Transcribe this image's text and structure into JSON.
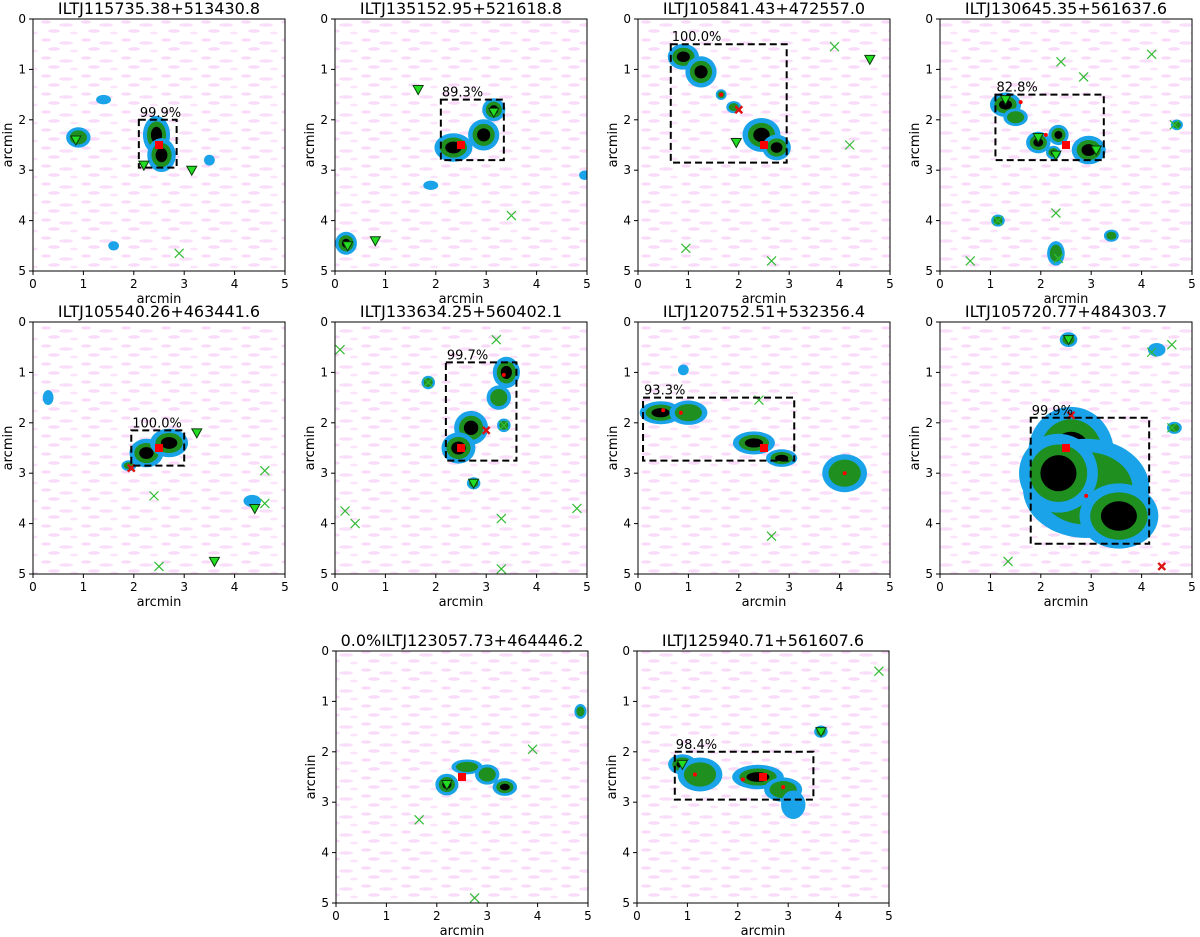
{
  "figure": {
    "layout": "grid",
    "rows": [
      4,
      4,
      2
    ],
    "colors": {
      "background_noise": "#f4b8f4",
      "low_emission": "#1aa3e8",
      "mid_emission": "#1f8f1f",
      "high_emission": "#000000",
      "core_marker": "#ff0000",
      "optical_match": "#22dd22",
      "unmatched_optical": "#33bb33",
      "bounding_box": "#000000"
    }
  },
  "chart_data": [
    {
      "type": "heatmap",
      "title": "ILTJ115735.38+513430.8",
      "xlabel": "arcmin",
      "ylabel": "arcmin",
      "xlim": [
        0,
        5
      ],
      "ylim": [
        5,
        0
      ],
      "xticks": [
        "0",
        "1",
        "2",
        "3",
        "4",
        "5"
      ],
      "yticks": [
        "0",
        "1",
        "2",
        "3",
        "4",
        "5"
      ],
      "box": {
        "x0": 2.1,
        "x1": 2.85,
        "y0": 2.0,
        "y1": 2.95,
        "label": "99.9%"
      },
      "center": [
        2.5,
        2.5
      ],
      "sources": [
        {
          "x": 2.45,
          "y": 2.3,
          "rx": 0.17,
          "ry": 0.25,
          "level": 3
        },
        {
          "x": 2.55,
          "y": 2.7,
          "rx": 0.18,
          "ry": 0.22,
          "level": 3
        },
        {
          "x": 0.9,
          "y": 2.35,
          "rx": 0.15,
          "ry": 0.12,
          "level": 2
        },
        {
          "x": 3.5,
          "y": 2.8,
          "rx": 0.05,
          "ry": 0.05,
          "level": 1
        },
        {
          "x": 1.6,
          "y": 4.5,
          "rx": 0.05,
          "ry": 0.04,
          "level": 1
        },
        {
          "x": 1.4,
          "y": 1.6,
          "rx": 0.08,
          "ry": 0.04,
          "level": 1
        }
      ],
      "triangles": [
        [
          0.85,
          2.4
        ],
        [
          2.2,
          2.9
        ],
        [
          3.15,
          3.0
        ]
      ],
      "crosses": [
        [
          2.9,
          4.65
        ]
      ],
      "red_x": [],
      "red_dots": []
    },
    {
      "type": "heatmap",
      "title": "ILTJ135152.95+521618.8",
      "xlabel": "arcmin",
      "ylabel": "arcmin",
      "xlim": [
        0,
        5
      ],
      "ylim": [
        5,
        0
      ],
      "xticks": [
        "0",
        "1",
        "2",
        "3",
        "4",
        "5"
      ],
      "yticks": [
        "0",
        "1",
        "2",
        "3",
        "4",
        "5"
      ],
      "box": {
        "x0": 2.1,
        "x1": 3.35,
        "y0": 1.6,
        "y1": 2.8,
        "label": "89.3%"
      },
      "center": [
        2.5,
        2.5
      ],
      "sources": [
        {
          "x": 2.35,
          "y": 2.55,
          "rx": 0.25,
          "ry": 0.18,
          "level": 3
        },
        {
          "x": 2.95,
          "y": 2.3,
          "rx": 0.2,
          "ry": 0.2,
          "level": 3
        },
        {
          "x": 3.15,
          "y": 1.8,
          "rx": 0.14,
          "ry": 0.14,
          "level": 3
        },
        {
          "x": 0.22,
          "y": 4.45,
          "rx": 0.13,
          "ry": 0.14,
          "level": 3
        },
        {
          "x": 4.95,
          "y": 3.1,
          "rx": 0.05,
          "ry": 0.04,
          "level": 1
        },
        {
          "x": 1.9,
          "y": 3.3,
          "rx": 0.08,
          "ry": 0.04,
          "level": 1
        }
      ],
      "triangles": [
        [
          1.65,
          1.4
        ],
        [
          3.15,
          1.85
        ],
        [
          0.25,
          4.5
        ],
        [
          0.8,
          4.4
        ]
      ],
      "crosses": [
        [
          3.5,
          3.9
        ]
      ],
      "red_x": [],
      "red_dots": []
    },
    {
      "type": "heatmap",
      "title": "ILTJ105841.43+472557.0",
      "xlabel": "arcmin",
      "ylabel": "arcmin",
      "xlim": [
        0,
        5
      ],
      "ylim": [
        5,
        0
      ],
      "xticks": [
        "0",
        "1",
        "2",
        "3",
        "4",
        "5"
      ],
      "yticks": [
        "0",
        "1",
        "2",
        "3",
        "4",
        "5"
      ],
      "box": {
        "x0": 0.65,
        "x1": 2.95,
        "y0": 0.5,
        "y1": 2.85,
        "label": "100.0%"
      },
      "center": [
        2.5,
        2.5
      ],
      "sources": [
        {
          "x": 0.9,
          "y": 0.75,
          "rx": 0.2,
          "ry": 0.16,
          "level": 3
        },
        {
          "x": 1.25,
          "y": 1.05,
          "rx": 0.2,
          "ry": 0.2,
          "level": 3
        },
        {
          "x": 1.65,
          "y": 1.5,
          "rx": 0.05,
          "ry": 0.05,
          "level": 2
        },
        {
          "x": 1.9,
          "y": 1.75,
          "rx": 0.08,
          "ry": 0.06,
          "level": 2
        },
        {
          "x": 2.45,
          "y": 2.3,
          "rx": 0.25,
          "ry": 0.22,
          "level": 3
        },
        {
          "x": 2.75,
          "y": 2.55,
          "rx": 0.18,
          "ry": 0.16,
          "level": 3
        }
      ],
      "triangles": [
        [
          1.95,
          2.45
        ],
        [
          4.6,
          0.8
        ]
      ],
      "crosses": [
        [
          3.9,
          0.55
        ],
        [
          4.2,
          2.5
        ],
        [
          0.95,
          4.55
        ],
        [
          2.65,
          4.8
        ]
      ],
      "red_x": [
        [
          2.0,
          1.8
        ]
      ],
      "red_dots": [
        [
          1.65,
          1.5
        ]
      ]
    },
    {
      "type": "heatmap",
      "title": "ILTJ130645.35+561637.6",
      "xlabel": "arcmin",
      "ylabel": "arcmin",
      "xlim": [
        0,
        5
      ],
      "ylim": [
        5,
        0
      ],
      "xticks": [
        "0",
        "1",
        "2",
        "3",
        "4",
        "5"
      ],
      "yticks": [
        "0",
        "1",
        "2",
        "3",
        "4",
        "5"
      ],
      "box": {
        "x0": 1.1,
        "x1": 3.25,
        "y0": 1.5,
        "y1": 2.8,
        "label": "82.8%"
      },
      "center": [
        2.5,
        2.5
      ],
      "sources": [
        {
          "x": 1.3,
          "y": 1.7,
          "rx": 0.2,
          "ry": 0.15,
          "level": 3
        },
        {
          "x": 1.5,
          "y": 1.95,
          "rx": 0.15,
          "ry": 0.1,
          "level": 2
        },
        {
          "x": 1.95,
          "y": 2.45,
          "rx": 0.15,
          "ry": 0.13,
          "level": 3
        },
        {
          "x": 2.35,
          "y": 2.3,
          "rx": 0.12,
          "ry": 0.12,
          "level": 3
        },
        {
          "x": 2.25,
          "y": 2.65,
          "rx": 0.08,
          "ry": 0.07,
          "level": 3
        },
        {
          "x": 2.95,
          "y": 2.6,
          "rx": 0.22,
          "ry": 0.18,
          "level": 3
        },
        {
          "x": 1.15,
          "y": 4.0,
          "rx": 0.07,
          "ry": 0.06,
          "level": 2
        },
        {
          "x": 2.3,
          "y": 4.65,
          "rx": 0.1,
          "ry": 0.15,
          "level": 2
        },
        {
          "x": 3.4,
          "y": 4.3,
          "rx": 0.08,
          "ry": 0.06,
          "level": 2
        },
        {
          "x": 4.7,
          "y": 2.1,
          "rx": 0.06,
          "ry": 0.05,
          "level": 2
        }
      ],
      "triangles": [
        [
          1.3,
          1.6
        ],
        [
          1.95,
          2.35
        ],
        [
          2.3,
          2.7
        ],
        [
          3.1,
          2.6
        ]
      ],
      "crosses": [
        [
          2.4,
          0.85
        ],
        [
          2.85,
          1.15
        ],
        [
          4.2,
          0.7
        ],
        [
          4.65,
          2.1
        ],
        [
          1.15,
          4.0
        ],
        [
          2.3,
          3.85
        ],
        [
          2.35,
          4.75
        ],
        [
          0.6,
          4.8
        ]
      ],
      "red_x": [],
      "red_dots": [
        [
          1.6,
          1.65
        ],
        [
          2.1,
          2.3
        ]
      ]
    },
    {
      "type": "heatmap",
      "title": "ILTJ105540.26+463441.6",
      "xlabel": "arcmin",
      "ylabel": "arcmin",
      "xlim": [
        0,
        5
      ],
      "ylim": [
        5,
        0
      ],
      "xticks": [
        "0",
        "1",
        "2",
        "3",
        "4",
        "5"
      ],
      "yticks": [
        "0",
        "1",
        "2",
        "3",
        "4",
        "5"
      ],
      "box": {
        "x0": 1.95,
        "x1": 3.0,
        "y0": 2.15,
        "y1": 2.85,
        "label": "100.0%"
      },
      "center": [
        2.5,
        2.5
      ],
      "sources": [
        {
          "x": 2.25,
          "y": 2.6,
          "rx": 0.22,
          "ry": 0.18,
          "level": 3
        },
        {
          "x": 2.7,
          "y": 2.4,
          "rx": 0.25,
          "ry": 0.18,
          "level": 3
        },
        {
          "x": 1.9,
          "y": 2.85,
          "rx": 0.08,
          "ry": 0.05,
          "level": 2
        },
        {
          "x": 0.3,
          "y": 1.5,
          "rx": 0.05,
          "ry": 0.08,
          "level": 1
        },
        {
          "x": 4.35,
          "y": 3.55,
          "rx": 0.1,
          "ry": 0.06,
          "level": 1
        }
      ],
      "triangles": [
        [
          3.25,
          2.2
        ],
        [
          4.4,
          3.7
        ],
        [
          3.6,
          4.75
        ]
      ],
      "crosses": [
        [
          2.4,
          3.45
        ],
        [
          4.6,
          2.95
        ],
        [
          4.6,
          3.6
        ],
        [
          2.5,
          4.85
        ]
      ],
      "red_x": [
        [
          1.95,
          2.9
        ]
      ],
      "red_dots": []
    },
    {
      "type": "heatmap",
      "title": "ILTJ133634.25+560402.1",
      "xlabel": "arcmin",
      "ylabel": "arcmin",
      "xlim": [
        0,
        5
      ],
      "ylim": [
        5,
        0
      ],
      "xticks": [
        "0",
        "1",
        "2",
        "3",
        "4",
        "5"
      ],
      "yticks": [
        "0",
        "1",
        "2",
        "3",
        "4",
        "5"
      ],
      "box": {
        "x0": 2.2,
        "x1": 3.6,
        "y0": 0.8,
        "y1": 2.75,
        "label": "99.7%"
      },
      "center": [
        2.5,
        2.5
      ],
      "sources": [
        {
          "x": 3.4,
          "y": 1.0,
          "rx": 0.17,
          "ry": 0.2,
          "level": 3
        },
        {
          "x": 3.25,
          "y": 1.5,
          "rx": 0.15,
          "ry": 0.15,
          "level": 2
        },
        {
          "x": 2.7,
          "y": 2.1,
          "rx": 0.22,
          "ry": 0.22,
          "level": 3
        },
        {
          "x": 2.45,
          "y": 2.5,
          "rx": 0.22,
          "ry": 0.2,
          "level": 3
        },
        {
          "x": 1.85,
          "y": 1.2,
          "rx": 0.07,
          "ry": 0.07,
          "level": 2
        },
        {
          "x": 2.75,
          "y": 3.2,
          "rx": 0.07,
          "ry": 0.06,
          "level": 2
        },
        {
          "x": 3.35,
          "y": 2.05,
          "rx": 0.07,
          "ry": 0.07,
          "level": 2
        }
      ],
      "triangles": [
        [
          2.75,
          3.2
        ]
      ],
      "crosses": [
        [
          0.1,
          0.55
        ],
        [
          3.2,
          0.35
        ],
        [
          1.85,
          1.2
        ],
        [
          3.35,
          2.05
        ],
        [
          0.2,
          3.75
        ],
        [
          0.4,
          4.0
        ],
        [
          3.3,
          3.9
        ],
        [
          4.8,
          3.7
        ],
        [
          3.3,
          4.9
        ]
      ],
      "red_x": [
        [
          3.0,
          2.15
        ]
      ],
      "red_dots": [
        [
          3.35,
          1.05
        ]
      ]
    },
    {
      "type": "heatmap",
      "title": "ILTJ120752.51+532356.4",
      "xlabel": "arcmin",
      "ylabel": "arcmin",
      "xlim": [
        0,
        5
      ],
      "ylim": [
        5,
        0
      ],
      "xticks": [
        "0",
        "1",
        "2",
        "3",
        "4",
        "5"
      ],
      "yticks": [
        "0",
        "1",
        "2",
        "3",
        "4",
        "5"
      ],
      "box": {
        "x0": 0.1,
        "x1": 3.1,
        "y0": 1.5,
        "y1": 2.75,
        "label": "93.3%"
      },
      "center": [
        2.5,
        2.5
      ],
      "sources": [
        {
          "x": 0.45,
          "y": 1.8,
          "rx": 0.28,
          "ry": 0.14,
          "level": 3
        },
        {
          "x": 1.0,
          "y": 1.8,
          "rx": 0.25,
          "ry": 0.15,
          "level": 2
        },
        {
          "x": 2.3,
          "y": 2.4,
          "rx": 0.28,
          "ry": 0.14,
          "level": 3
        },
        {
          "x": 2.85,
          "y": 2.7,
          "rx": 0.2,
          "ry": 0.1,
          "level": 3
        },
        {
          "x": 4.1,
          "y": 3.0,
          "rx": 0.3,
          "ry": 0.25,
          "level": 2
        },
        {
          "x": 0.9,
          "y": 0.95,
          "rx": 0.05,
          "ry": 0.05,
          "level": 1
        }
      ],
      "triangles": [],
      "crosses": [
        [
          2.4,
          1.55
        ],
        [
          2.65,
          4.25
        ]
      ],
      "red_x": [],
      "red_dots": [
        [
          0.5,
          1.75
        ],
        [
          0.85,
          1.8
        ],
        [
          4.1,
          3.0
        ]
      ]
    },
    {
      "type": "heatmap",
      "title": "ILTJ105720.77+484303.7",
      "xlabel": "arcmin",
      "ylabel": "arcmin",
      "xlim": [
        0,
        5
      ],
      "ylim": [
        5,
        0
      ],
      "xticks": [
        "0",
        "1",
        "2",
        "3",
        "4",
        "5"
      ],
      "yticks": [
        "0",
        "1",
        "2",
        "3",
        "4",
        "5"
      ],
      "box": {
        "x0": 1.8,
        "x1": 4.15,
        "y0": 1.9,
        "y1": 4.4,
        "label": "99.9%"
      },
      "center": [
        2.5,
        2.5
      ],
      "sources": [
        {
          "x": 2.6,
          "y": 2.6,
          "rx": 0.6,
          "ry": 0.65,
          "level": 3
        },
        {
          "x": 2.9,
          "y": 3.3,
          "rx": 0.9,
          "ry": 0.7,
          "level": 2
        },
        {
          "x": 3.55,
          "y": 3.85,
          "rx": 0.55,
          "ry": 0.45,
          "level": 3
        },
        {
          "x": 2.35,
          "y": 3.0,
          "rx": 0.55,
          "ry": 0.55,
          "level": 3
        },
        {
          "x": 2.55,
          "y": 0.35,
          "rx": 0.1,
          "ry": 0.08,
          "level": 2
        },
        {
          "x": 4.3,
          "y": 0.55,
          "rx": 0.1,
          "ry": 0.07,
          "level": 1
        },
        {
          "x": 4.65,
          "y": 2.1,
          "rx": 0.08,
          "ry": 0.06,
          "level": 2
        }
      ],
      "triangles": [
        [
          2.55,
          0.35
        ]
      ],
      "crosses": [
        [
          4.2,
          0.6
        ],
        [
          4.6,
          0.45
        ],
        [
          4.6,
          2.1
        ],
        [
          1.35,
          4.75
        ]
      ],
      "red_x": [
        [
          2.6,
          1.85
        ],
        [
          4.4,
          4.85
        ]
      ],
      "red_dots": [
        [
          2.9,
          3.45
        ]
      ]
    },
    {
      "type": "heatmap",
      "title": "0.0%ILTJ123057.73+464446.2",
      "xlabel": "arcmin",
      "ylabel": "arcmin",
      "xlim": [
        0,
        5
      ],
      "ylim": [
        5,
        0
      ],
      "xticks": [
        "0",
        "1",
        "2",
        "3",
        "4",
        "5"
      ],
      "yticks": [
        "0",
        "1",
        "2",
        "3",
        "4",
        "5"
      ],
      "box": null,
      "center": [
        2.5,
        2.5
      ],
      "sources": [
        {
          "x": 2.2,
          "y": 2.65,
          "rx": 0.14,
          "ry": 0.13,
          "level": 3
        },
        {
          "x": 2.6,
          "y": 2.3,
          "rx": 0.2,
          "ry": 0.08,
          "level": 2
        },
        {
          "x": 3.0,
          "y": 2.45,
          "rx": 0.15,
          "ry": 0.12,
          "level": 2
        },
        {
          "x": 3.35,
          "y": 2.7,
          "rx": 0.15,
          "ry": 0.1,
          "level": 3
        },
        {
          "x": 4.85,
          "y": 1.2,
          "rx": 0.06,
          "ry": 0.08,
          "level": 2
        }
      ],
      "triangles": [
        [
          2.2,
          2.65
        ]
      ],
      "crosses": [
        [
          3.9,
          1.95
        ],
        [
          1.65,
          3.35
        ],
        [
          2.75,
          4.9
        ]
      ],
      "red_x": [],
      "red_dots": []
    },
    {
      "type": "heatmap",
      "title": "ILTJ125940.71+561607.6",
      "xlabel": "arcmin",
      "ylabel": "arcmin",
      "xlim": [
        0,
        5
      ],
      "ylim": [
        5,
        0
      ],
      "xticks": [
        "0",
        "1",
        "2",
        "3",
        "4",
        "5"
      ],
      "yticks": [
        "0",
        "1",
        "2",
        "3",
        "4",
        "5"
      ],
      "box": {
        "x0": 0.75,
        "x1": 3.5,
        "y0": 2.0,
        "y1": 2.95,
        "label": "98.4%"
      },
      "center": [
        2.5,
        2.5
      ],
      "sources": [
        {
          "x": 0.9,
          "y": 2.25,
          "rx": 0.18,
          "ry": 0.12,
          "level": 3
        },
        {
          "x": 1.25,
          "y": 2.45,
          "rx": 0.3,
          "ry": 0.22,
          "level": 2
        },
        {
          "x": 2.4,
          "y": 2.5,
          "rx": 0.35,
          "ry": 0.15,
          "level": 3
        },
        {
          "x": 2.9,
          "y": 2.75,
          "rx": 0.25,
          "ry": 0.15,
          "level": 2
        },
        {
          "x": 3.1,
          "y": 3.05,
          "rx": 0.15,
          "ry": 0.18,
          "level": 1
        },
        {
          "x": 3.65,
          "y": 1.6,
          "rx": 0.07,
          "ry": 0.06,
          "level": 2
        }
      ],
      "triangles": [
        [
          0.9,
          2.25
        ],
        [
          3.65,
          1.6
        ]
      ],
      "crosses": [
        [
          4.8,
          0.4
        ]
      ],
      "red_x": [],
      "red_dots": [
        [
          1.15,
          2.45
        ],
        [
          2.1,
          2.55
        ],
        [
          2.9,
          2.7
        ]
      ]
    }
  ]
}
